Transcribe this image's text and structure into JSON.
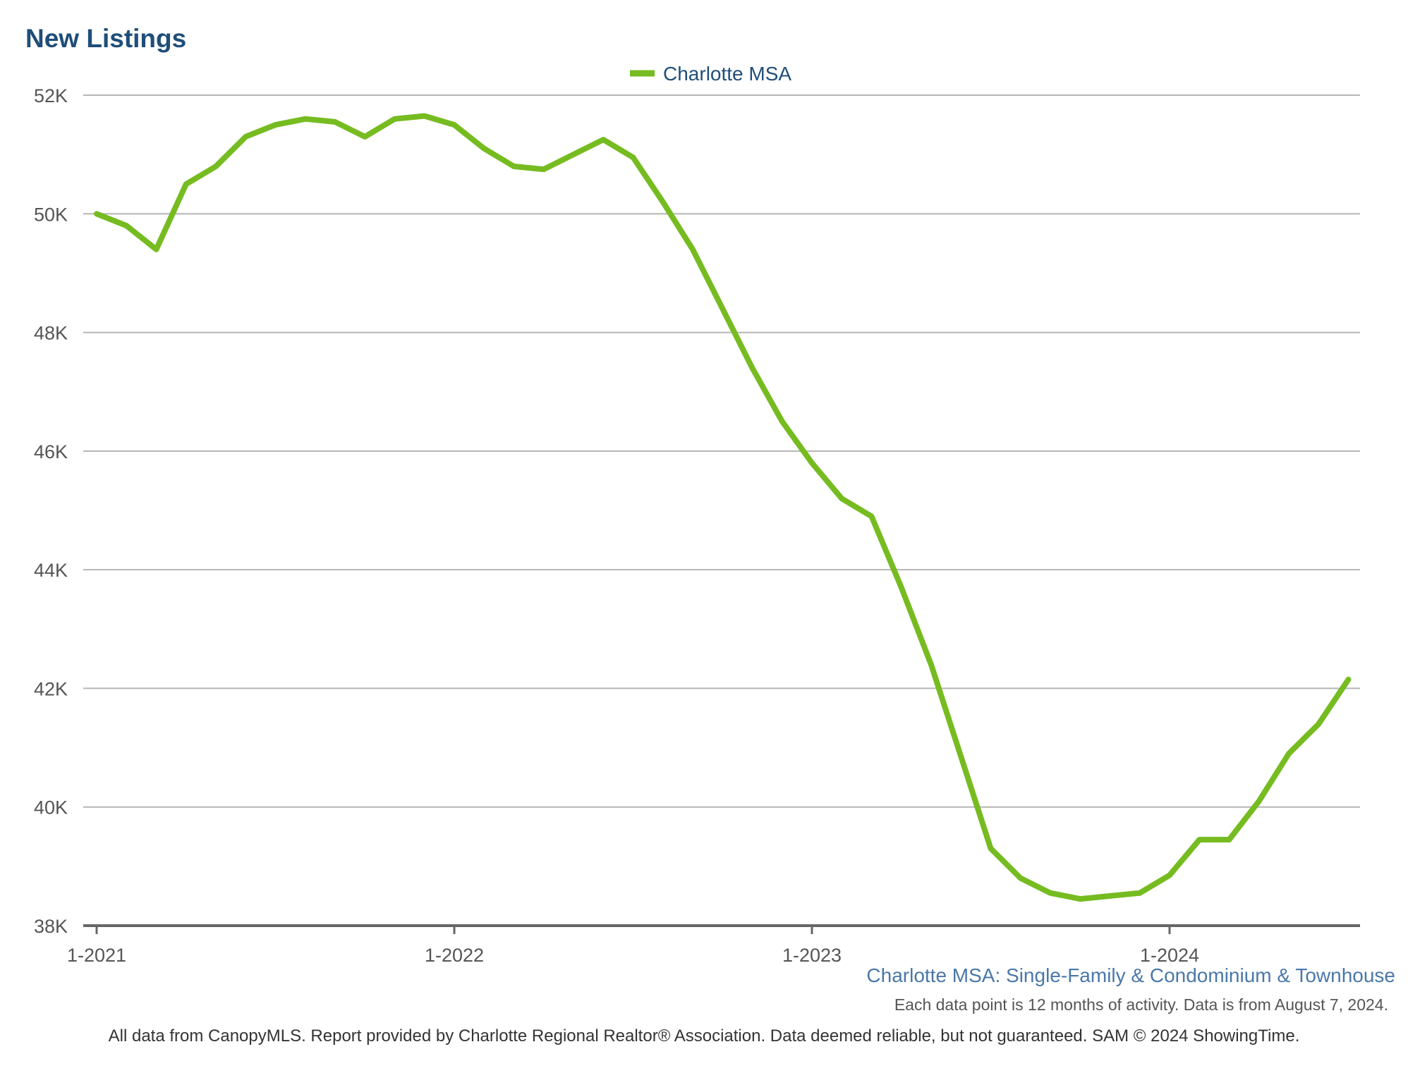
{
  "chart_data": {
    "type": "line",
    "title": "New Listings",
    "subtitle": "Charlotte MSA: Single-Family & Condominium & Townhouse",
    "note": "Each data point is 12 months of activity. Data is from August 7, 2024.",
    "footer": "All data from CanopyMLS. Report provided by Charlotte Regional Realtor® Association. Data deemed reliable, but not guaranteed. SAM © 2024 ShowingTime.",
    "legend_position": "top-center",
    "grid": true,
    "ylim": [
      38000,
      52000
    ],
    "y_ticks": [
      {
        "value": 38000,
        "label": "38K"
      },
      {
        "value": 40000,
        "label": "40K"
      },
      {
        "value": 42000,
        "label": "42K"
      },
      {
        "value": 44000,
        "label": "44K"
      },
      {
        "value": 46000,
        "label": "46K"
      },
      {
        "value": 48000,
        "label": "48K"
      },
      {
        "value": 50000,
        "label": "50K"
      },
      {
        "value": 52000,
        "label": "52K"
      }
    ],
    "x_ticks": [
      {
        "index": 0,
        "label": "1-2021"
      },
      {
        "index": 12,
        "label": "1-2022"
      },
      {
        "index": 24,
        "label": "1-2023"
      },
      {
        "index": 36,
        "label": "1-2024"
      }
    ],
    "x": [
      "1-2021",
      "2-2021",
      "3-2021",
      "4-2021",
      "5-2021",
      "6-2021",
      "7-2021",
      "8-2021",
      "9-2021",
      "10-2021",
      "11-2021",
      "12-2021",
      "1-2022",
      "2-2022",
      "3-2022",
      "4-2022",
      "5-2022",
      "6-2022",
      "7-2022",
      "8-2022",
      "9-2022",
      "10-2022",
      "11-2022",
      "12-2022",
      "1-2023",
      "2-2023",
      "3-2023",
      "4-2023",
      "5-2023",
      "6-2023",
      "7-2023",
      "8-2023",
      "9-2023",
      "10-2023",
      "11-2023",
      "12-2023",
      "1-2024",
      "2-2024",
      "3-2024",
      "4-2024",
      "5-2024",
      "6-2024",
      "7-2024"
    ],
    "series": [
      {
        "name": "Charlotte MSA",
        "color": "#76bc21",
        "values": [
          50000,
          49800,
          49400,
          50500,
          50800,
          51300,
          51500,
          51600,
          51550,
          51300,
          51600,
          51650,
          51500,
          51100,
          50800,
          50750,
          51000,
          51250,
          50950,
          50200,
          49400,
          48400,
          47400,
          46500,
          45800,
          45200,
          44900,
          43700,
          42400,
          40850,
          39300,
          38800,
          38550,
          38450,
          38500,
          38550,
          38850,
          39450,
          39450,
          40100,
          40900,
          41400,
          42150
        ]
      }
    ]
  }
}
